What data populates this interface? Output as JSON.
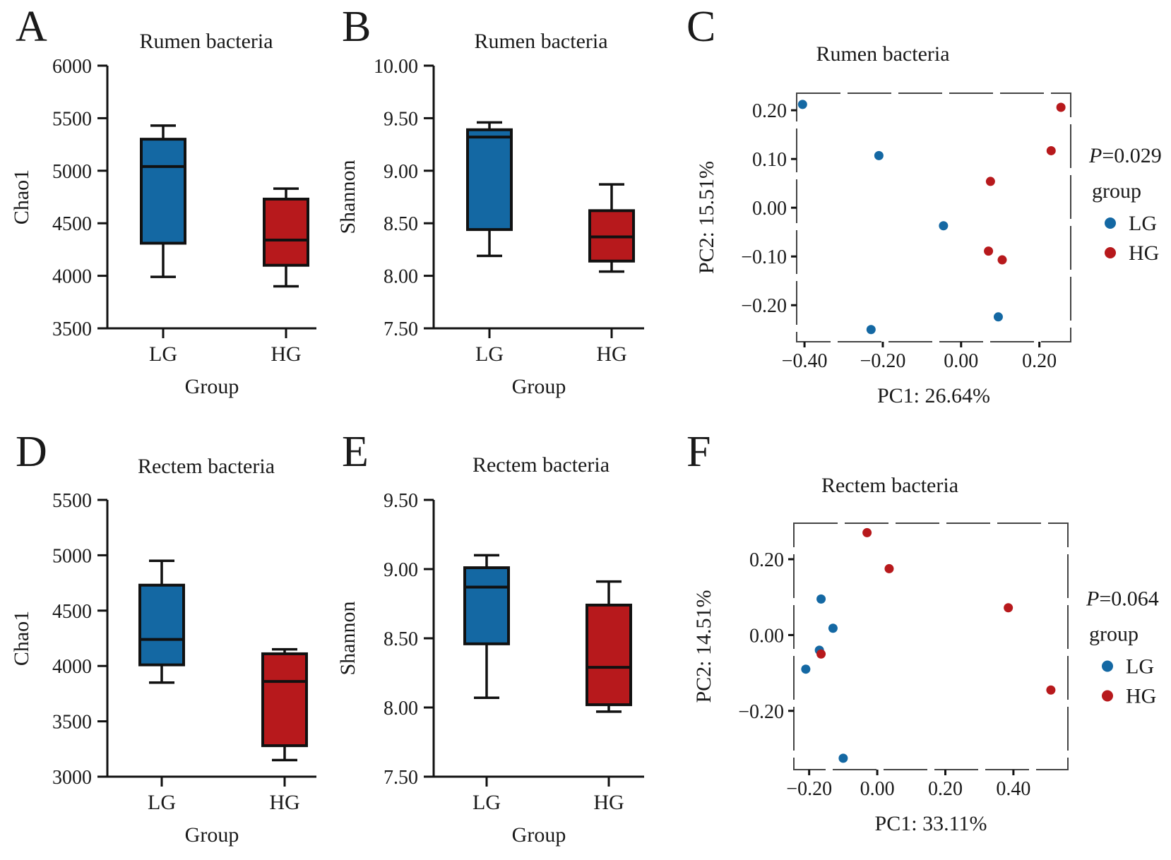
{
  "colors": {
    "LG": "#1468a3",
    "HG": "#b7191c"
  },
  "chart_data": [
    {
      "panel": "A",
      "type": "box",
      "title": "Rumen bacteria",
      "xlabel": "Group",
      "ylabel": "Chao1",
      "categories": [
        "LG",
        "HG"
      ],
      "ylim": [
        3500,
        6000
      ],
      "yticks": [
        3500,
        4000,
        4500,
        5000,
        5500,
        6000
      ],
      "ytick_labels": [
        "3500",
        "4000",
        "4500",
        "5000",
        "5500",
        "6000"
      ],
      "boxes": [
        {
          "group": "LG",
          "min": 3990,
          "q1": 4310,
          "median": 5040,
          "q3": 5300,
          "max": 5430
        },
        {
          "group": "HG",
          "min": 3900,
          "q1": 4100,
          "median": 4340,
          "q3": 4730,
          "max": 4830
        }
      ]
    },
    {
      "panel": "B",
      "type": "box",
      "title": "Rumen bacteria",
      "xlabel": "Group",
      "ylabel": "Shannon",
      "categories": [
        "LG",
        "HG"
      ],
      "ylim": [
        7.5,
        10.0
      ],
      "yticks": [
        7.5,
        8.0,
        8.5,
        9.0,
        9.5,
        10.0
      ],
      "ytick_labels": [
        "7.50",
        "8.00",
        "8.50",
        "9.00",
        "9.50",
        "10.00"
      ],
      "boxes": [
        {
          "group": "LG",
          "min": 8.19,
          "q1": 8.44,
          "median": 9.32,
          "q3": 9.39,
          "max": 9.46
        },
        {
          "group": "HG",
          "min": 8.04,
          "q1": 8.14,
          "median": 8.37,
          "q3": 8.62,
          "max": 8.87
        }
      ]
    },
    {
      "panel": "C",
      "type": "scatter",
      "title": "Rumen bacteria",
      "xlabel": "PC1: 26.64%",
      "ylabel": "PC2: 15.51%",
      "xlim": [
        -0.42,
        0.28
      ],
      "ylim": [
        -0.275,
        0.235
      ],
      "xticks": [
        -0.4,
        -0.2,
        0.0,
        0.2
      ],
      "xtick_labels": [
        "−0.40",
        "−0.20",
        "0.00",
        "0.20"
      ],
      "yticks": [
        0.2,
        0.1,
        0.0,
        -0.1,
        -0.2
      ],
      "ytick_labels": [
        "0.20",
        "0.10",
        "0.00",
        "−0.10",
        "−0.20"
      ],
      "p_value": "=0.029",
      "legend": {
        "title": "group",
        "entries": [
          "LG",
          "HG"
        ],
        "position": "right"
      },
      "series": [
        {
          "name": "LG",
          "points": [
            [
              -0.405,
              0.212
            ],
            [
              -0.21,
              0.107
            ],
            [
              -0.045,
              -0.037
            ],
            [
              -0.23,
              -0.25
            ],
            [
              0.095,
              -0.224
            ]
          ]
        },
        {
          "name": "HG",
          "points": [
            [
              0.255,
              0.206
            ],
            [
              0.23,
              0.117
            ],
            [
              0.075,
              0.054
            ],
            [
              0.07,
              -0.089
            ],
            [
              0.105,
              -0.107
            ]
          ]
        }
      ]
    },
    {
      "panel": "D",
      "type": "box",
      "title": "Rectem bacteria",
      "xlabel": "Group",
      "ylabel": "Chao1",
      "categories": [
        "LG",
        "HG"
      ],
      "ylim": [
        3000,
        5500
      ],
      "yticks": [
        3000,
        3500,
        4000,
        4500,
        5000,
        5500
      ],
      "ytick_labels": [
        "3000",
        "3500",
        "4000",
        "4500",
        "5000",
        "5500"
      ],
      "boxes": [
        {
          "group": "LG",
          "min": 3850,
          "q1": 4010,
          "median": 4240,
          "q3": 4730,
          "max": 4950
        },
        {
          "group": "HG",
          "min": 3150,
          "q1": 3280,
          "median": 3860,
          "q3": 4110,
          "max": 4150
        }
      ]
    },
    {
      "panel": "E",
      "type": "box",
      "title": "Rectem bacteria",
      "xlabel": "Group",
      "ylabel": "Shannon",
      "categories": [
        "LG",
        "HG"
      ],
      "ylim": [
        7.5,
        9.5
      ],
      "yticks": [
        7.5,
        8.0,
        8.5,
        9.0,
        9.5
      ],
      "ytick_labels": [
        "7.50",
        "8.00",
        "8.50",
        "9.00",
        "9.50"
      ],
      "boxes": [
        {
          "group": "LG",
          "min": 8.07,
          "q1": 8.46,
          "median": 8.87,
          "q3": 9.01,
          "max": 9.1
        },
        {
          "group": "HG",
          "min": 7.97,
          "q1": 8.02,
          "median": 8.29,
          "q3": 8.74,
          "max": 8.91
        }
      ]
    },
    {
      "panel": "F",
      "type": "scatter",
      "title": "Rectem bacteria",
      "xlabel": "PC1: 33.11%",
      "ylabel": "PC2: 14.51%",
      "xlim": [
        -0.245,
        0.56
      ],
      "ylim": [
        -0.355,
        0.295
      ],
      "xticks": [
        -0.2,
        0.0,
        0.2,
        0.4
      ],
      "xtick_labels": [
        "−0.20",
        "0.00",
        "0.20",
        "0.40"
      ],
      "yticks": [
        0.2,
        0.0,
        -0.2
      ],
      "ytick_labels": [
        "0.20",
        "0.00",
        "−0.20"
      ],
      "p_value": "=0.064",
      "legend": {
        "title": "group",
        "entries": [
          "LG",
          "HG"
        ],
        "position": "right"
      },
      "series": [
        {
          "name": "LG",
          "points": [
            [
              -0.165,
              0.095
            ],
            [
              -0.13,
              0.018
            ],
            [
              -0.17,
              -0.04
            ],
            [
              -0.21,
              -0.09
            ],
            [
              -0.1,
              -0.325
            ]
          ]
        },
        {
          "name": "HG",
          "points": [
            [
              -0.03,
              0.27
            ],
            [
              0.035,
              0.175
            ],
            [
              0.385,
              0.072
            ],
            [
              0.51,
              -0.145
            ],
            [
              -0.165,
              -0.05
            ]
          ]
        }
      ]
    }
  ]
}
